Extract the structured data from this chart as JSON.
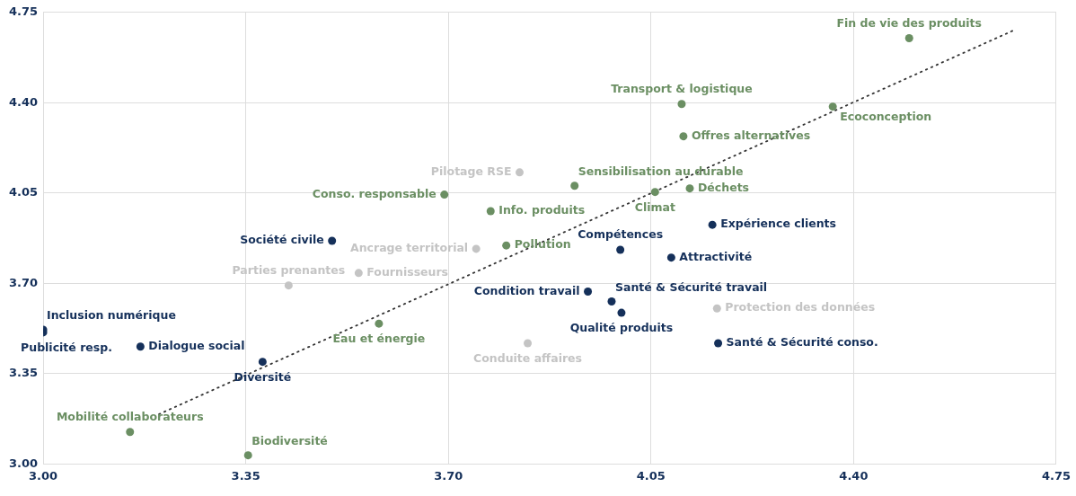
{
  "chart_data": {
    "type": "scatter",
    "series": [
      {
        "color": "#6b8f63",
        "x": [
          4.496,
          4.103,
          4.364,
          4.106,
          3.918,
          4.117,
          4.057,
          3.693,
          3.773,
          3.8,
          3.58,
          3.15,
          3.354
        ],
        "values": [
          4.65,
          4.395,
          4.385,
          4.27,
          4.078,
          4.068,
          4.054,
          4.044,
          3.98,
          3.847,
          3.544,
          3.124,
          3.034
        ]
      },
      {
        "color": "#15305a",
        "x": [
          3.499,
          4.156,
          3.997,
          4.085,
          3.941,
          3.982,
          3.999,
          4.166,
          3.0,
          3.0,
          3.168,
          3.379
        ],
        "values": [
          3.865,
          3.927,
          3.83,
          3.8,
          3.668,
          3.63,
          3.586,
          3.468,
          3.52,
          3.51,
          3.455,
          3.396
        ]
      },
      {
        "color": "#c4c4c4",
        "x": [
          3.823,
          3.748,
          3.424,
          3.545,
          4.164,
          3.837
        ],
        "values": [
          4.13,
          3.834,
          3.692,
          3.74,
          3.603,
          3.468
        ]
      },
      {
        "type": "line",
        "color": "#333333",
        "x": [
          3.2,
          4.68
        ],
        "values": [
          3.193,
          4.684
        ],
        "line_style": "dotted",
        "marker": "none"
      }
    ],
    "xlim": [
      3.0,
      4.75
    ],
    "xticks": [
      {
        "value": 3.0,
        "label": "3.00"
      },
      {
        "value": 3.35,
        "label": "3.35"
      },
      {
        "value": 3.7,
        "label": "3.70"
      },
      {
        "value": 4.05,
        "label": "4.05"
      },
      {
        "value": 4.4,
        "label": "4.40"
      },
      {
        "value": 4.75,
        "label": "4.75"
      }
    ],
    "ylim": [
      3.0,
      4.75
    ],
    "yticks": [
      {
        "value": 3.0,
        "label": "3.00"
      },
      {
        "value": 3.35,
        "label": "3.35"
      },
      {
        "value": 3.7,
        "label": "3.70"
      },
      {
        "value": 4.05,
        "label": "4.05"
      },
      {
        "value": 4.4,
        "label": "4.40"
      },
      {
        "value": 4.75,
        "label": "4.75"
      }
    ],
    "grid": true,
    "legend": false,
    "marker": "circle",
    "annotations": [
      {
        "text": "Fin de vie des produits",
        "x": 4.496,
        "y": 4.65
      },
      {
        "text": "Transport & logistique",
        "x": 4.103,
        "y": 4.395
      },
      {
        "text": "Ecoconception",
        "x": 4.364,
        "y": 4.385
      },
      {
        "text": "Offres alternatives",
        "x": 4.106,
        "y": 4.27
      },
      {
        "text": "Sensibilisation au durable",
        "x": 3.918,
        "y": 4.078
      },
      {
        "text": "Déchets",
        "x": 4.117,
        "y": 4.068
      },
      {
        "text": "Climat",
        "x": 4.057,
        "y": 4.054
      },
      {
        "text": "Conso. responsable",
        "x": 3.693,
        "y": 4.044
      },
      {
        "text": "Info. produits",
        "x": 3.773,
        "y": 3.98
      },
      {
        "text": "Pollution",
        "x": 3.8,
        "y": 3.847
      },
      {
        "text": "Eau et énergie",
        "x": 3.58,
        "y": 3.544
      },
      {
        "text": "Mobilité collaborateurs",
        "x": 3.15,
        "y": 3.124
      },
      {
        "text": "Biodiversité",
        "x": 3.354,
        "y": 3.034
      },
      {
        "text": "Société civile",
        "x": 3.499,
        "y": 3.865
      },
      {
        "text": "Expérience clients",
        "x": 4.156,
        "y": 3.927
      },
      {
        "text": "Compétences",
        "x": 3.997,
        "y": 3.83
      },
      {
        "text": "Attractivité",
        "x": 4.085,
        "y": 3.8
      },
      {
        "text": "Condition travail",
        "x": 3.941,
        "y": 3.668
      },
      {
        "text": "Santé & Sécurité travail",
        "x": 3.982,
        "y": 3.63
      },
      {
        "text": "Qualité produits",
        "x": 3.999,
        "y": 3.586
      },
      {
        "text": "Santé & Sécurité conso.",
        "x": 4.166,
        "y": 3.468
      },
      {
        "text": "Inclusion numérique",
        "x": 3.0,
        "y": 3.52
      },
      {
        "text": "Publicité resp.",
        "x": 3.0,
        "y": 3.51
      },
      {
        "text": "Dialogue social",
        "x": 3.168,
        "y": 3.455
      },
      {
        "text": "Diversité",
        "x": 3.379,
        "y": 3.396
      },
      {
        "text": "Pilotage RSE",
        "x": 3.823,
        "y": 4.13
      },
      {
        "text": "Ancrage territorial",
        "x": 3.748,
        "y": 3.834
      },
      {
        "text": "Parties prenantes",
        "x": 3.424,
        "y": 3.692
      },
      {
        "text": "Fournisseurs",
        "x": 3.545,
        "y": 3.74
      },
      {
        "text": "Protection des données",
        "x": 4.164,
        "y": 3.603
      },
      {
        "text": "Conduite affaires",
        "x": 3.837,
        "y": 3.468
      }
    ]
  }
}
